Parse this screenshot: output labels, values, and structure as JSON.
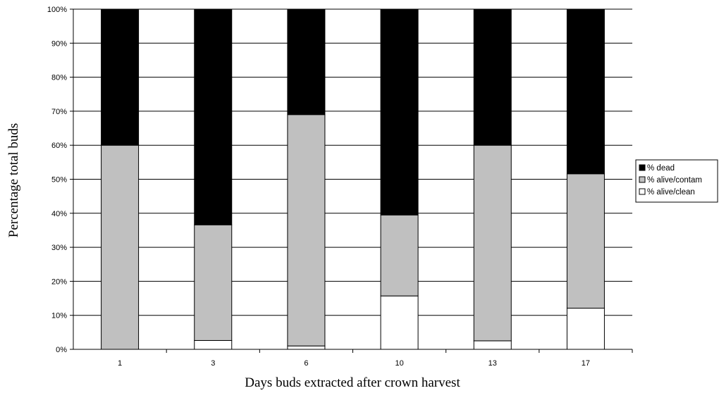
{
  "chart_data": {
    "type": "bar",
    "stacked": true,
    "percent_stacked": true,
    "title": "",
    "xlabel": "Days buds extracted after crown harvest",
    "ylabel": "Percentage total buds",
    "ylim": [
      0,
      100
    ],
    "y_ticks": [
      "0%",
      "10%",
      "20%",
      "30%",
      "40%",
      "50%",
      "60%",
      "70%",
      "80%",
      "90%",
      "100%"
    ],
    "grid": "horizontal",
    "legend_position": "right",
    "categories": [
      "1",
      "3",
      "6",
      "10",
      "13",
      "17"
    ],
    "series": [
      {
        "name": "% alive/clean",
        "color": "#ffffff",
        "values": [
          0,
          2.6,
          1,
          15.7,
          2.5,
          12.1
        ]
      },
      {
        "name": "% alive/contam",
        "color": "#c0c0c0",
        "values": [
          60,
          34,
          68,
          23.8,
          57.5,
          39.5
        ]
      },
      {
        "name": "% dead",
        "color": "#000000",
        "values": [
          40,
          63.4,
          31,
          60.5,
          40,
          48.4
        ]
      }
    ],
    "legend_order": [
      "% dead",
      "% alive/contam",
      "% alive/clean"
    ]
  }
}
